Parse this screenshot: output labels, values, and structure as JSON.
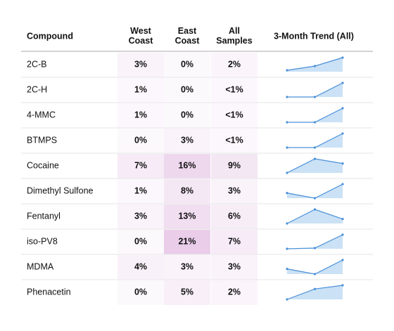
{
  "table": {
    "header": [
      "Compound",
      "West\nCoast",
      "East\nCoast",
      "All\nSamples",
      "3-Month Trend (All)"
    ],
    "trend_ylim": [
      0,
      1
    ],
    "rows": [
      {
        "cells": [
          "2C-B",
          "3%",
          "0%",
          "2%"
        ],
        "trend": [
          0.1,
          0.4,
          1
        ]
      },
      {
        "cells": [
          "2C-H",
          "1%",
          "0%",
          "<1%"
        ],
        "trend": [
          0,
          0,
          1
        ]
      },
      {
        "cells": [
          "4-MMC",
          "1%",
          "0%",
          "<1%"
        ],
        "trend": [
          0,
          0,
          1
        ]
      },
      {
        "cells": [
          "BTMPS",
          "0%",
          "3%",
          "<1%"
        ],
        "trend": [
          0,
          0,
          1
        ]
      },
      {
        "cells": [
          "Cocaine",
          "7%",
          "16%",
          "9%"
        ],
        "trend": [
          0,
          1,
          0.67
        ]
      },
      {
        "cells": [
          "Dimethyl Sulfone",
          "1%",
          "8%",
          "3%"
        ],
        "trend": [
          0.37,
          0,
          1
        ]
      },
      {
        "cells": [
          "Fentanyl",
          "3%",
          "13%",
          "6%"
        ],
        "trend": [
          0,
          1,
          0.32
        ]
      },
      {
        "cells": [
          "iso-PV8",
          "0%",
          "21%",
          "7%"
        ],
        "trend": [
          0,
          0.05,
          1
        ]
      },
      {
        "cells": [
          "MDMA",
          "4%",
          "3%",
          "3%"
        ],
        "trend": [
          0.37,
          0,
          1
        ]
      },
      {
        "cells": [
          "Phenacetin",
          "0%",
          "5%",
          "2%"
        ],
        "trend": [
          0,
          0.74,
          1
        ]
      }
    ]
  }
}
